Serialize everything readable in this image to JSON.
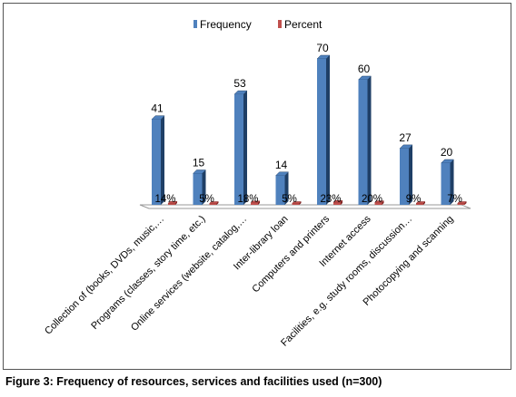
{
  "caption": "Figure 3: Frequency of resources, services and facilities used (n=300)",
  "colors": {
    "frequency": "#4f81bd",
    "frequency_dark": "#1f3f66",
    "percent": "#c0504d",
    "percent_dark": "#7a1f1d"
  },
  "chart_data": {
    "type": "bar",
    "categories": [
      "Collection of (books, DVDs, music,…",
      "Programs (classes, story time, etc.)",
      "Online services (website, catalog,…",
      "Inter-library loan",
      "Computers and printers",
      "Internet access",
      "Facilities, e.g. study rooms, discussion…",
      "Photocopying and scanning"
    ],
    "series": [
      {
        "name": "Frequency",
        "values": [
          41,
          15,
          53,
          14,
          70,
          60,
          27,
          20
        ],
        "labels": [
          "41",
          "15",
          "53",
          "14",
          "70",
          "60",
          "27",
          "20"
        ]
      },
      {
        "name": "Percent",
        "values": [
          14,
          5,
          18,
          5,
          23,
          20,
          9,
          7
        ],
        "labels": [
          "14%",
          "5%",
          "18%",
          "5%",
          "23%",
          "20%",
          "9%",
          "7%"
        ]
      }
    ],
    "legend_position": "top",
    "grid": false,
    "ylim": [
      0,
      70
    ]
  }
}
